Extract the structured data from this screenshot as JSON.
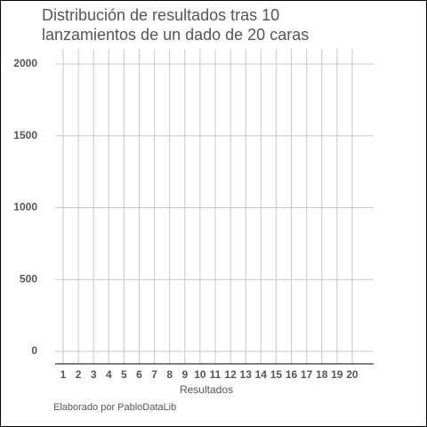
{
  "chart_data": {
    "type": "bar",
    "title": [
      "Distribución de resultados tras 10",
      "lanzamientos de un dado de 20 caras"
    ],
    "xlabel": "Resultados",
    "caption": "Elaborado por PabloDataLib",
    "categories": [
      "1",
      "2",
      "3",
      "4",
      "5",
      "6",
      "7",
      "8",
      "9",
      "10",
      "11",
      "12",
      "13",
      "14",
      "15",
      "16",
      "17",
      "18",
      "19",
      "20"
    ],
    "ylim": [
      -87,
      2105
    ],
    "yticks": [
      0,
      500,
      1000,
      1500,
      2000
    ],
    "grid": true
  }
}
